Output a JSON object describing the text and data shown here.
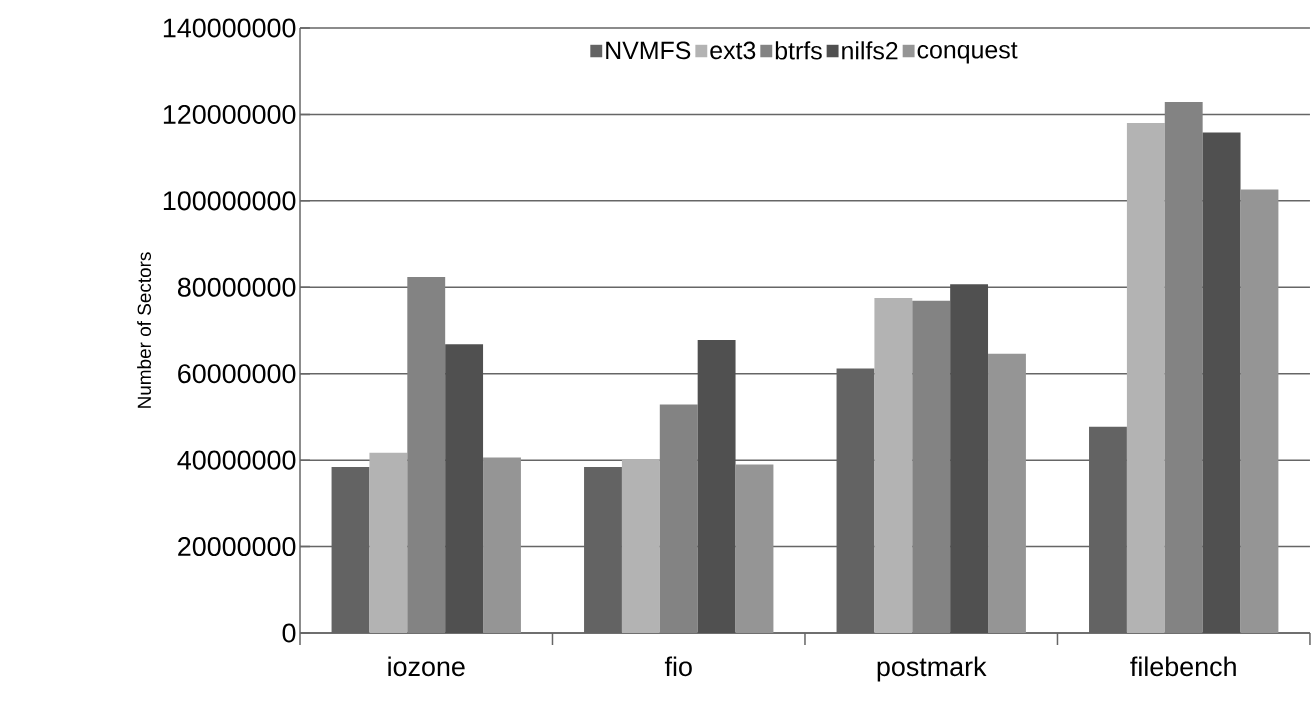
{
  "chart_data": {
    "type": "bar",
    "ylabel": "Number of Sectors",
    "categories": [
      "iozone",
      "fio",
      "postmark",
      "filebench"
    ],
    "series": [
      {
        "name": "NVMFS",
        "color": "#636363",
        "values": [
          38400000,
          38400000,
          61200000,
          47700000
        ]
      },
      {
        "name": "ext3",
        "color": "#b3b3b3",
        "values": [
          41700000,
          40100000,
          77500000,
          118000000
        ]
      },
      {
        "name": "btrfs",
        "color": "#838383",
        "values": [
          82400000,
          52900000,
          76900000,
          122900000
        ]
      },
      {
        "name": "nilfs2",
        "color": "#505050",
        "values": [
          66800000,
          67800000,
          80700000,
          115800000
        ]
      },
      {
        "name": "conquest",
        "color": "#959595",
        "values": [
          40600000,
          39000000,
          64600000,
          102600000
        ]
      }
    ],
    "ylim": [
      0,
      140000000
    ],
    "yticks": [
      0,
      20000000,
      40000000,
      60000000,
      80000000,
      100000000,
      120000000,
      140000000
    ],
    "grid": "y",
    "legend": "top"
  }
}
